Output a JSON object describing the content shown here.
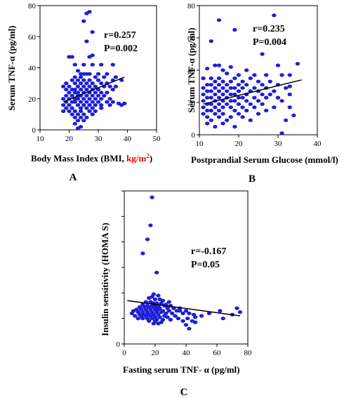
{
  "figure": {
    "chart_color": "#1f1fd6",
    "highlight_color": "#ff0000"
  },
  "chart_data": [
    {
      "type": "scatter",
      "panel_label": "A",
      "xlabel_prefix": "Body Mass Index (BMI, ",
      "xlabel_unit": "kg/m",
      "xlabel_unit_sup": "2",
      "xlabel_suffix": ")",
      "ylabel": "Serum TNF-α (pg/ml)",
      "xlim": [
        10,
        50
      ],
      "ylim": [
        0,
        80
      ],
      "xticks": [
        "10",
        "20",
        "30",
        "40",
        "50"
      ],
      "yticks": [
        "0",
        "20",
        "40",
        "60",
        "80"
      ],
      "stat_r": "r=0.257",
      "stat_p": "P=0.002",
      "trendline": [
        [
          18,
          18
        ],
        [
          39,
          34
        ]
      ],
      "points": [
        [
          26,
          75
        ],
        [
          27,
          76
        ],
        [
          28,
          63
        ],
        [
          25,
          70
        ],
        [
          26,
          57
        ],
        [
          28,
          48
        ],
        [
          20,
          47
        ],
        [
          21,
          47
        ],
        [
          27,
          47
        ],
        [
          22,
          42
        ],
        [
          25,
          42
        ],
        [
          28,
          42
        ],
        [
          31,
          42
        ],
        [
          35,
          42
        ],
        [
          23,
          38
        ],
        [
          24,
          36
        ],
        [
          25,
          36
        ],
        [
          26,
          36
        ],
        [
          27,
          36
        ],
        [
          30,
          36
        ],
        [
          33,
          36
        ],
        [
          22,
          34
        ],
        [
          24,
          34
        ],
        [
          29,
          34
        ],
        [
          32,
          34
        ],
        [
          36,
          34
        ],
        [
          21,
          32
        ],
        [
          23,
          32
        ],
        [
          25,
          32
        ],
        [
          27,
          32
        ],
        [
          30,
          32
        ],
        [
          35,
          32
        ],
        [
          38,
          32
        ],
        [
          19,
          30
        ],
        [
          22,
          30
        ],
        [
          24,
          30
        ],
        [
          26,
          30
        ],
        [
          28,
          30
        ],
        [
          31,
          30
        ],
        [
          33,
          30
        ],
        [
          18,
          28
        ],
        [
          20,
          28
        ],
        [
          23,
          28
        ],
        [
          25,
          28
        ],
        [
          27,
          28
        ],
        [
          29,
          28
        ],
        [
          32,
          28
        ],
        [
          34,
          28
        ],
        [
          36,
          28
        ],
        [
          19,
          26
        ],
        [
          21,
          26
        ],
        [
          22,
          26
        ],
        [
          24,
          26
        ],
        [
          26,
          26
        ],
        [
          28,
          26
        ],
        [
          30,
          26
        ],
        [
          35,
          26
        ],
        [
          20,
          24
        ],
        [
          22,
          24
        ],
        [
          23,
          24
        ],
        [
          25,
          24
        ],
        [
          27,
          24
        ],
        [
          29,
          24
        ],
        [
          31,
          24
        ],
        [
          33,
          24
        ],
        [
          19,
          22
        ],
        [
          21,
          22
        ],
        [
          23,
          22
        ],
        [
          24,
          22
        ],
        [
          26,
          22
        ],
        [
          28,
          22
        ],
        [
          30,
          22
        ],
        [
          32,
          22
        ],
        [
          18,
          20
        ],
        [
          20,
          20
        ],
        [
          22,
          20
        ],
        [
          23,
          20
        ],
        [
          25,
          20
        ],
        [
          27,
          20
        ],
        [
          29,
          20
        ],
        [
          31,
          20
        ],
        [
          34,
          20
        ],
        [
          19,
          18
        ],
        [
          21,
          18
        ],
        [
          22,
          18
        ],
        [
          24,
          18
        ],
        [
          26,
          18
        ],
        [
          28,
          18
        ],
        [
          30,
          18
        ],
        [
          33,
          18
        ],
        [
          35,
          18
        ],
        [
          37,
          17
        ],
        [
          39,
          17
        ],
        [
          38,
          16
        ],
        [
          18,
          16
        ],
        [
          20,
          16
        ],
        [
          23,
          16
        ],
        [
          25,
          16
        ],
        [
          27,
          16
        ],
        [
          29,
          16
        ],
        [
          31,
          16
        ],
        [
          34,
          16
        ],
        [
          19,
          14
        ],
        [
          21,
          14
        ],
        [
          24,
          14
        ],
        [
          26,
          14
        ],
        [
          28,
          14
        ],
        [
          31,
          14
        ],
        [
          18,
          12
        ],
        [
          20,
          12
        ],
        [
          22,
          12
        ],
        [
          24,
          12
        ],
        [
          27,
          12
        ],
        [
          29,
          12
        ],
        [
          21,
          10
        ],
        [
          23,
          10
        ],
        [
          25,
          10
        ],
        [
          28,
          10
        ],
        [
          22,
          8
        ],
        [
          24,
          8
        ],
        [
          26,
          8
        ],
        [
          23,
          6
        ],
        [
          25,
          6
        ],
        [
          22,
          4
        ],
        [
          24,
          2
        ],
        [
          23,
          1
        ]
      ]
    },
    {
      "type": "scatter",
      "panel_label": "B",
      "xlabel": "Postprandial Serum Glucose (mmol/l)",
      "ylabel": "Serum TNF-α (pg/ml)",
      "xlim": [
        10,
        40
      ],
      "ylim": [
        0,
        80
      ],
      "xticks": [
        "10",
        "20",
        "30",
        "40"
      ],
      "yticks": [
        "0",
        "20",
        "40",
        "60",
        "80"
      ],
      "stat_r": "r=0.235",
      "stat_p": "P=0.004",
      "trendline": [
        [
          11,
          19
        ],
        [
          36,
          34
        ]
      ],
      "points": [
        [
          29,
          74
        ],
        [
          15,
          71
        ],
        [
          19,
          65
        ],
        [
          13,
          58
        ],
        [
          26,
          50
        ],
        [
          35,
          44
        ],
        [
          14,
          43
        ],
        [
          15,
          43
        ],
        [
          30,
          43
        ],
        [
          18,
          42
        ],
        [
          12,
          41
        ],
        [
          16,
          40
        ],
        [
          22,
          40
        ],
        [
          17,
          38
        ],
        [
          20,
          37
        ],
        [
          24,
          37
        ],
        [
          27,
          37
        ],
        [
          31,
          37
        ],
        [
          33,
          37
        ],
        [
          11,
          35
        ],
        [
          13,
          35
        ],
        [
          15,
          35
        ],
        [
          19,
          35
        ],
        [
          23,
          35
        ],
        [
          14,
          33
        ],
        [
          16,
          33
        ],
        [
          18,
          33
        ],
        [
          21,
          33
        ],
        [
          25,
          33
        ],
        [
          28,
          33
        ],
        [
          12,
          31
        ],
        [
          13,
          31
        ],
        [
          15,
          31
        ],
        [
          17,
          31
        ],
        [
          20,
          31
        ],
        [
          22,
          31
        ],
        [
          26,
          31
        ],
        [
          30,
          31
        ],
        [
          11,
          29
        ],
        [
          14,
          29
        ],
        [
          16,
          29
        ],
        [
          18,
          29
        ],
        [
          19,
          29
        ],
        [
          21,
          29
        ],
        [
          24,
          29
        ],
        [
          27,
          29
        ],
        [
          32,
          29
        ],
        [
          12,
          27
        ],
        [
          13,
          27
        ],
        [
          15,
          27
        ],
        [
          17,
          27
        ],
        [
          20,
          27
        ],
        [
          23,
          27
        ],
        [
          25,
          27
        ],
        [
          29,
          27
        ],
        [
          11,
          25
        ],
        [
          14,
          25
        ],
        [
          16,
          25
        ],
        [
          18,
          25
        ],
        [
          19,
          25
        ],
        [
          22,
          25
        ],
        [
          26,
          25
        ],
        [
          28,
          25
        ],
        [
          33,
          25
        ],
        [
          12,
          23
        ],
        [
          13,
          23
        ],
        [
          15,
          23
        ],
        [
          17,
          23
        ],
        [
          20,
          23
        ],
        [
          21,
          23
        ],
        [
          24,
          23
        ],
        [
          27,
          23
        ],
        [
          30,
          23
        ],
        [
          11,
          21
        ],
        [
          14,
          21
        ],
        [
          16,
          21
        ],
        [
          18,
          21
        ],
        [
          19,
          21
        ],
        [
          22,
          21
        ],
        [
          25,
          21
        ],
        [
          31,
          21
        ],
        [
          12,
          19
        ],
        [
          13,
          19
        ],
        [
          15,
          19
        ],
        [
          17,
          19
        ],
        [
          20,
          19
        ],
        [
          23,
          19
        ],
        [
          26,
          19
        ],
        [
          11,
          17
        ],
        [
          14,
          17
        ],
        [
          16,
          17
        ],
        [
          18,
          17
        ],
        [
          21,
          17
        ],
        [
          24,
          17
        ],
        [
          29,
          17
        ],
        [
          33,
          17
        ],
        [
          12,
          15
        ],
        [
          13,
          15
        ],
        [
          15,
          15
        ],
        [
          19,
          15
        ],
        [
          22,
          15
        ],
        [
          27,
          15
        ],
        [
          11,
          13
        ],
        [
          14,
          13
        ],
        [
          16,
          13
        ],
        [
          20,
          13
        ],
        [
          25,
          13
        ],
        [
          12,
          11
        ],
        [
          15,
          11
        ],
        [
          18,
          11
        ],
        [
          21,
          11
        ],
        [
          13,
          9
        ],
        [
          17,
          9
        ],
        [
          23,
          9
        ],
        [
          12,
          7
        ],
        [
          16,
          7
        ],
        [
          14,
          5
        ],
        [
          19,
          5
        ],
        [
          31,
          1
        ],
        [
          32,
          9
        ],
        [
          34,
          12
        ],
        [
          33,
          30
        ]
      ]
    },
    {
      "type": "scatter",
      "panel_label": "C",
      "xlabel": "Fasting serum TNF- α (pg/ml)",
      "ylabel": "Insulin sensitivity (HOMA S)",
      "xlim": [
        0,
        80
      ],
      "ylim": [
        0,
        12
      ],
      "xticks": [
        "0",
        "20",
        "40",
        "60",
        "80"
      ],
      "yticks": [
        "0",
        "",
        "",
        "",
        "",
        "",
        ""
      ],
      "stat_r": "r=-0.167",
      "stat_p": "P=0.05",
      "trendline": [
        [
          2,
          3.4
        ],
        [
          75,
          2.2
        ]
      ],
      "points": [
        [
          18,
          11.5
        ],
        [
          17,
          9.3
        ],
        [
          15,
          8.2
        ],
        [
          12,
          7.1
        ],
        [
          21,
          5.6
        ],
        [
          19,
          3.9
        ],
        [
          22,
          3.8
        ],
        [
          18,
          3.7
        ],
        [
          16,
          3.6
        ],
        [
          20,
          3.5
        ],
        [
          23,
          3.5
        ],
        [
          25,
          3.4
        ],
        [
          14,
          3.3
        ],
        [
          17,
          3.3
        ],
        [
          19,
          3.2
        ],
        [
          21,
          3.2
        ],
        [
          24,
          3.2
        ],
        [
          27,
          3.1
        ],
        [
          12,
          3.1
        ],
        [
          15,
          3.0
        ],
        [
          18,
          3.0
        ],
        [
          20,
          3.0
        ],
        [
          22,
          3.0
        ],
        [
          26,
          3.0
        ],
        [
          30,
          3.0
        ],
        [
          10,
          2.9
        ],
        [
          13,
          2.9
        ],
        [
          16,
          2.9
        ],
        [
          19,
          2.9
        ],
        [
          21,
          2.8
        ],
        [
          23,
          2.8
        ],
        [
          28,
          2.8
        ],
        [
          32,
          2.8
        ],
        [
          36,
          2.8
        ],
        [
          8,
          2.7
        ],
        [
          11,
          2.7
        ],
        [
          14,
          2.7
        ],
        [
          17,
          2.7
        ],
        [
          20,
          2.7
        ],
        [
          22,
          2.7
        ],
        [
          25,
          2.6
        ],
        [
          29,
          2.6
        ],
        [
          34,
          2.6
        ],
        [
          40,
          2.6
        ],
        [
          6,
          2.6
        ],
        [
          9,
          2.5
        ],
        [
          12,
          2.5
        ],
        [
          15,
          2.5
        ],
        [
          18,
          2.5
        ],
        [
          21,
          2.5
        ],
        [
          24,
          2.5
        ],
        [
          27,
          2.4
        ],
        [
          31,
          2.4
        ],
        [
          38,
          2.4
        ],
        [
          42,
          2.4
        ],
        [
          45,
          2.3
        ],
        [
          5,
          2.4
        ],
        [
          10,
          2.3
        ],
        [
          13,
          2.3
        ],
        [
          16,
          2.3
        ],
        [
          19,
          2.3
        ],
        [
          22,
          2.3
        ],
        [
          26,
          2.2
        ],
        [
          33,
          2.2
        ],
        [
          7,
          2.2
        ],
        [
          11,
          2.2
        ],
        [
          14,
          2.2
        ],
        [
          17,
          2.2
        ],
        [
          20,
          2.1
        ],
        [
          23,
          2.1
        ],
        [
          28,
          2.1
        ],
        [
          35,
          2.0
        ],
        [
          41,
          2.0
        ],
        [
          46,
          2.1
        ],
        [
          50,
          2.2
        ],
        [
          55,
          2.4
        ],
        [
          62,
          2.6
        ],
        [
          64,
          2.0
        ],
        [
          70,
          2.3
        ],
        [
          73,
          2.8
        ],
        [
          75,
          2.5
        ],
        [
          9,
          2.0
        ],
        [
          12,
          2.0
        ],
        [
          15,
          2.0
        ],
        [
          18,
          2.0
        ],
        [
          21,
          1.9
        ],
        [
          25,
          1.9
        ],
        [
          30,
          1.9
        ],
        [
          38,
          1.8
        ],
        [
          44,
          1.8
        ],
        [
          16,
          1.8
        ],
        [
          20,
          1.8
        ],
        [
          24,
          1.7
        ],
        [
          19,
          1.6
        ],
        [
          22,
          1.6
        ],
        [
          40,
          1.5
        ],
        [
          42,
          1.2
        ],
        [
          46,
          1.7
        ],
        [
          36,
          2.6
        ],
        [
          29,
          3.3
        ]
      ]
    }
  ]
}
